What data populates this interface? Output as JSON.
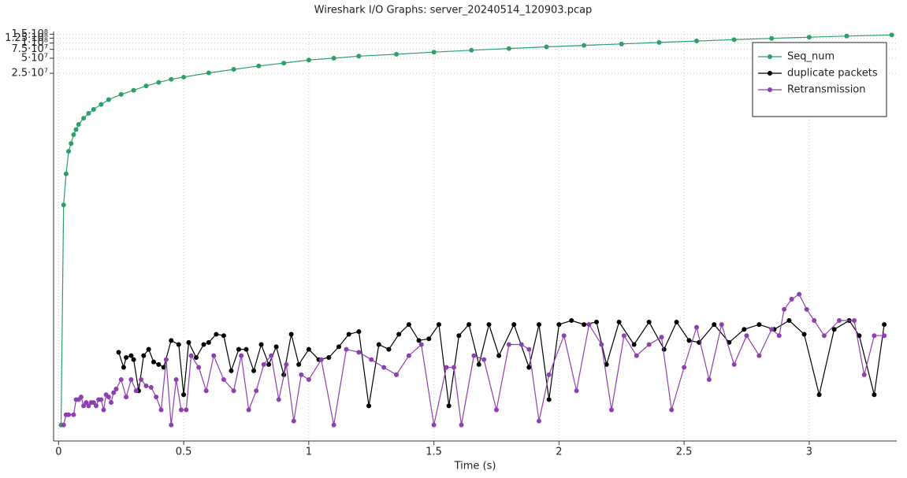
{
  "chart_data": {
    "type": "line",
    "title": "Wireshark I/O Graphs: server_20240514_120903.pcap",
    "x_label": "Time (s)",
    "xlim": [
      -0.02,
      3.35
    ],
    "xticks": [
      0,
      0.5,
      1,
      1.5,
      2,
      2.5,
      3
    ],
    "ylim": [
      1.2,
      170000000
    ],
    "ylog": true,
    "yticks": [
      {
        "value": 25000000,
        "label": "2.5·10⁷"
      },
      {
        "value": 50000000,
        "label": "5·10⁷"
      },
      {
        "value": 75000000,
        "label": "7.5·10⁷"
      },
      {
        "value": 100000000,
        "label": "1·10⁸"
      },
      {
        "value": 125000000,
        "label": "1.25·10⁸"
      },
      {
        "value": 150000000,
        "label": "1.5·10⁸"
      }
    ],
    "grid": true,
    "legend": "upper right",
    "series": [
      {
        "name": "Seq_num",
        "color": "#2e9e6a",
        "x": [
          0.01,
          0.02,
          0.03,
          0.04,
          0.05,
          0.06,
          0.07,
          0.08,
          0.1,
          0.12,
          0.14,
          0.17,
          0.2,
          0.25,
          0.3,
          0.35,
          0.4,
          0.45,
          0.5,
          0.6,
          0.7,
          0.8,
          0.9,
          1.0,
          1.1,
          1.2,
          1.35,
          1.5,
          1.65,
          1.8,
          1.95,
          2.1,
          2.25,
          2.4,
          2.55,
          2.7,
          2.85,
          3.0,
          3.15,
          3.33
        ],
        "values": [
          2.5,
          60000,
          250000,
          700000,
          1000000,
          1500000,
          1900000,
          2400000,
          3200000,
          4000000,
          4800000,
          6000000,
          7500000,
          9500000,
          11500000,
          14000000,
          16500000,
          19000000,
          21000000,
          25500000,
          30000000,
          35000000,
          40000000,
          46000000,
          50000000,
          55000000,
          60000000,
          66000000,
          72000000,
          78000000,
          84000000,
          90000000,
          96000000,
          103000000,
          110000000,
          117000000,
          124000000,
          131000000,
          138000000,
          145000000
        ]
      },
      {
        "name": "duplicate packets",
        "color": "#000000",
        "x": [
          0.24,
          0.26,
          0.27,
          0.29,
          0.3,
          0.32,
          0.34,
          0.36,
          0.38,
          0.4,
          0.42,
          0.45,
          0.48,
          0.5,
          0.52,
          0.55,
          0.58,
          0.6,
          0.63,
          0.66,
          0.69,
          0.72,
          0.75,
          0.78,
          0.81,
          0.84,
          0.87,
          0.9,
          0.93,
          0.96,
          1.0,
          1.04,
          1.08,
          1.12,
          1.16,
          1.2,
          1.24,
          1.28,
          1.32,
          1.36,
          1.4,
          1.44,
          1.48,
          1.52,
          1.56,
          1.6,
          1.64,
          1.68,
          1.72,
          1.76,
          1.82,
          1.88,
          1.92,
          1.96,
          2.0,
          2.05,
          2.1,
          2.15,
          2.19,
          2.24,
          2.3,
          2.36,
          2.42,
          2.47,
          2.52,
          2.56,
          2.62,
          2.68,
          2.74,
          2.8,
          2.86,
          2.92,
          2.98,
          3.04,
          3.1,
          3.16,
          3.2,
          3.26,
          3.3
        ],
        "values": [
          70,
          35,
          55,
          60,
          50,
          12,
          60,
          80,
          45,
          40,
          35,
          120,
          100,
          10,
          110,
          55,
          100,
          110,
          160,
          150,
          30,
          80,
          80,
          30,
          100,
          40,
          90,
          25,
          160,
          40,
          80,
          50,
          55,
          90,
          160,
          180,
          6,
          100,
          80,
          160,
          250,
          120,
          130,
          250,
          6,
          150,
          250,
          40,
          250,
          60,
          250,
          35,
          250,
          8,
          250,
          300,
          250,
          280,
          40,
          280,
          100,
          280,
          80,
          280,
          120,
          110,
          250,
          110,
          200,
          250,
          200,
          300,
          160,
          10,
          200,
          300,
          150,
          10,
          250
        ]
      },
      {
        "name": "Retransmission",
        "color": "#8e3fb0",
        "x": [
          0.02,
          0.03,
          0.04,
          0.06,
          0.07,
          0.08,
          0.09,
          0.1,
          0.11,
          0.12,
          0.13,
          0.14,
          0.15,
          0.16,
          0.17,
          0.18,
          0.19,
          0.2,
          0.21,
          0.22,
          0.23,
          0.25,
          0.27,
          0.29,
          0.31,
          0.33,
          0.35,
          0.37,
          0.39,
          0.41,
          0.43,
          0.45,
          0.47,
          0.49,
          0.51,
          0.53,
          0.56,
          0.59,
          0.62,
          0.66,
          0.7,
          0.73,
          0.76,
          0.79,
          0.82,
          0.85,
          0.88,
          0.91,
          0.94,
          0.97,
          1.0,
          1.05,
          1.1,
          1.15,
          1.2,
          1.25,
          1.3,
          1.35,
          1.4,
          1.45,
          1.5,
          1.55,
          1.58,
          1.61,
          1.66,
          1.7,
          1.75,
          1.8,
          1.85,
          1.88,
          1.92,
          1.96,
          2.02,
          2.07,
          2.12,
          2.17,
          2.21,
          2.26,
          2.31,
          2.36,
          2.41,
          2.45,
          2.5,
          2.55,
          2.6,
          2.65,
          2.7,
          2.75,
          2.8,
          2.85,
          2.88,
          2.9,
          2.93,
          2.96,
          2.99,
          3.02,
          3.06,
          3.12,
          3.18,
          3.22,
          3.26,
          3.3
        ],
        "values": [
          2.5,
          4,
          4,
          4,
          8,
          8,
          9,
          6,
          7,
          6,
          7,
          7,
          6,
          8,
          8,
          5,
          10,
          9,
          7,
          11,
          13,
          20,
          9,
          20,
          12,
          20,
          15,
          14,
          9,
          5,
          50,
          2.5,
          20,
          5,
          5,
          60,
          35,
          12,
          60,
          20,
          12,
          60,
          5,
          12,
          40,
          60,
          8,
          40,
          3,
          25,
          20,
          50,
          2.5,
          80,
          70,
          50,
          35,
          25,
          60,
          100,
          2.5,
          35,
          35,
          2.5,
          60,
          50,
          5,
          100,
          100,
          80,
          3,
          25,
          150,
          12,
          250,
          100,
          5,
          150,
          60,
          100,
          140,
          5,
          35,
          220,
          20,
          250,
          40,
          150,
          60,
          200,
          150,
          500,
          800,
          1000,
          500,
          300,
          150,
          300,
          300,
          25,
          150,
          150
        ]
      }
    ]
  }
}
